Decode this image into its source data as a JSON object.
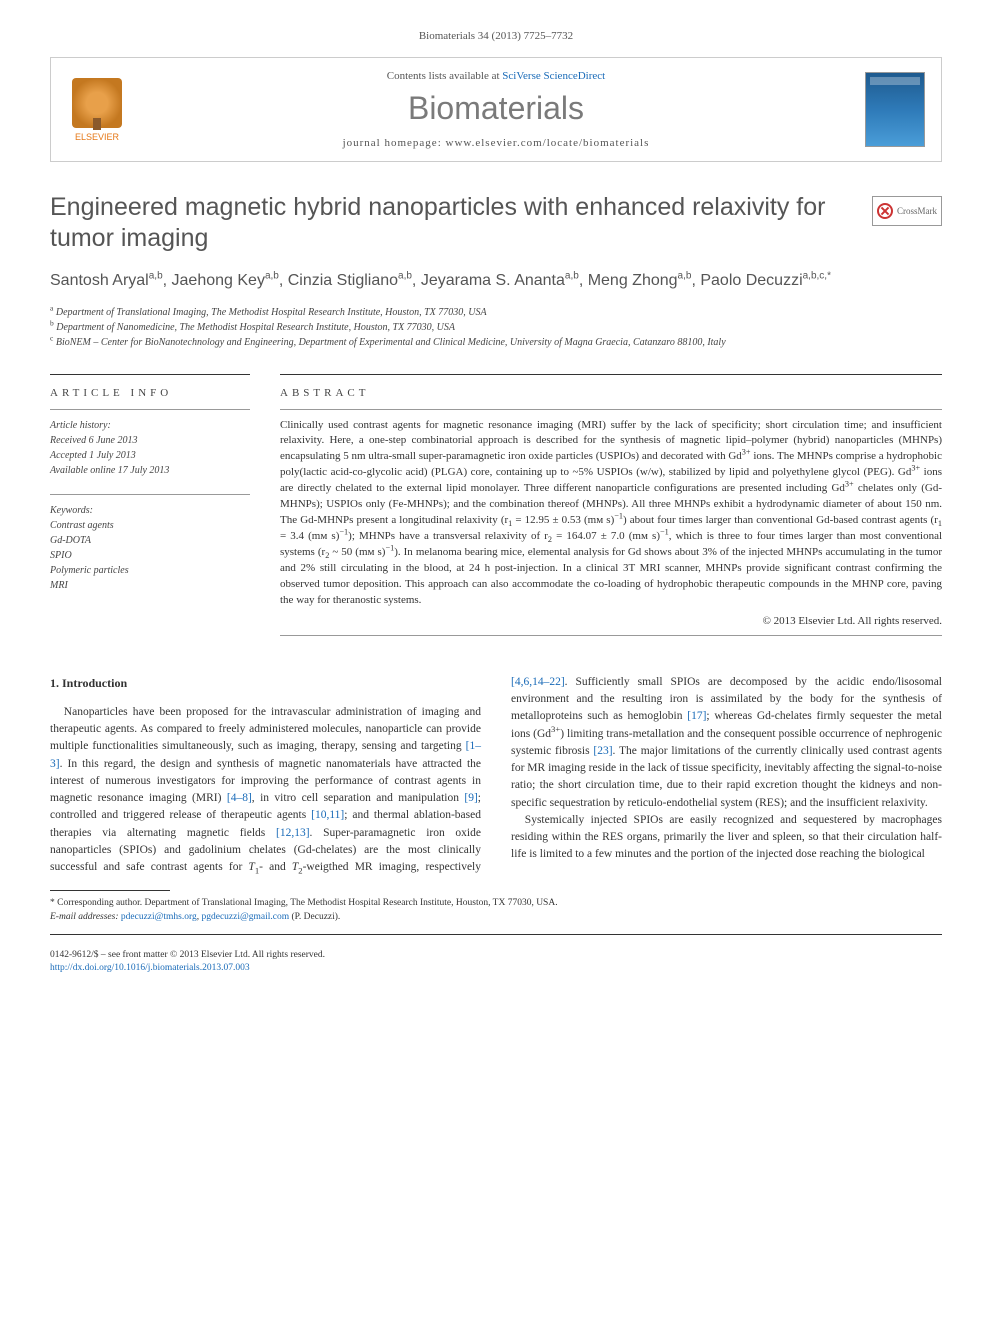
{
  "citation": "Biomaterials 34 (2013) 7725–7732",
  "header": {
    "contents_prefix": "Contents lists available at ",
    "contents_link": "SciVerse ScienceDirect",
    "journal_name": "Biomaterials",
    "homepage_prefix": "journal homepage: ",
    "homepage_url": "www.elsevier.com/locate/biomaterials",
    "elsevier_label": "ELSEVIER",
    "cover_label": "Biomaterials"
  },
  "crossmark_label": "CrossMark",
  "title": "Engineered magnetic hybrid nanoparticles with enhanced relaxivity for tumor imaging",
  "authors_html": "Santosh Aryal<sup>a,b</sup>, Jaehong Key<sup>a,b</sup>, Cinzia Stigliano<sup>a,b</sup>, Jeyarama S. Ananta<sup>a,b</sup>, Meng Zhong<sup>a,b</sup>, Paolo Decuzzi<sup>a,b,c,*</sup>",
  "affiliations": [
    {
      "sup": "a",
      "text": "Department of Translational Imaging, The Methodist Hospital Research Institute, Houston, TX 77030, USA"
    },
    {
      "sup": "b",
      "text": "Department of Nanomedicine, The Methodist Hospital Research Institute, Houston, TX 77030, USA"
    },
    {
      "sup": "c",
      "text": "BioNEM – Center for BioNanotechnology and Engineering, Department of Experimental and Clinical Medicine, University of Magna Graecia, Catanzaro 88100, Italy"
    }
  ],
  "article_info": {
    "head": "ARTICLE INFO",
    "history_label": "Article history:",
    "received": "Received 6 June 2013",
    "accepted": "Accepted 1 July 2013",
    "online": "Available online 17 July 2013",
    "keywords_label": "Keywords:",
    "keywords": [
      "Contrast agents",
      "Gd-DOTA",
      "SPIO",
      "Polymeric particles",
      "MRI"
    ]
  },
  "abstract": {
    "head": "ABSTRACT",
    "text_html": "Clinically used contrast agents for magnetic resonance imaging (MRI) suffer by the lack of specificity; short circulation time; and insufficient relaxivity. Here, a one-step combinatorial approach is described for the synthesis of magnetic lipid–polymer (hybrid) nanoparticles (MHNPs) encapsulating 5 nm ultra-small super-paramagnetic iron oxide particles (USPIOs) and decorated with Gd<sup>3+</sup> ions. The MHNPs comprise a hydrophobic poly(lactic acid-co-glycolic acid) (PLGA) core, containing up to ~5% USPIOs (w/w), stabilized by lipid and polyethylene glycol (PEG). Gd<sup>3+</sup> ions are directly chelated to the external lipid monolayer. Three different nanoparticle configurations are presented including Gd<sup>3+</sup> chelates only (Gd-MHNPs); USPIOs only (Fe-MHNPs); and the combination thereof (MHNPs). All three MHNPs exhibit a hydrodynamic diameter of about 150 nm. The Gd-MHNPs present a longitudinal relaxivity (r<sub>1</sub> = 12.95 ± 0.53 (mᴍ s)<sup>−1</sup>) about four times larger than conventional Gd-based contrast agents (r<sub>1</sub> = 3.4 (mᴍ s)<sup>−1</sup>); MHNPs have a transversal relaxivity of r<sub>2</sub> = 164.07 ± 7.0 (mᴍ s)<sup>−1</sup>, which is three to four times larger than most conventional systems (r<sub>2</sub> ~ 50 (mᴍ s)<sup>−1</sup>). In melanoma bearing mice, elemental analysis for Gd shows about 3% of the injected MHNPs accumulating in the tumor and 2% still circulating in the blood, at 24 h post-injection. In a clinical 3T MRI scanner, MHNPs provide significant contrast confirming the observed tumor deposition. This approach can also accommodate the co-loading of hydrophobic therapeutic compounds in the MHNP core, paving the way for theranostic systems.",
    "copyright": "© 2013 Elsevier Ltd. All rights reserved."
  },
  "intro": {
    "heading": "1. Introduction",
    "p1_html": "Nanoparticles have been proposed for the intravascular administration of imaging and therapeutic agents. As compared to freely administered molecules, nanoparticle can provide multiple functionalities simultaneously, such as imaging, therapy, sensing and targeting <a href='#'>[1–3]</a>. In this regard, the design and synthesis of magnetic nanomaterials have attracted the interest of numerous investigators for improving the performance of contrast agents in magnetic resonance imaging (MRI) <a href='#'>[4–8]</a>, in vitro cell separation and manipulation <a href='#'>[9]</a>; controlled and triggered release of therapeutic agents <a href='#'>[10,11]</a>; and thermal ablation-based therapies via alternating magnetic fields <a href='#'>[12,13]</a>. Super-paramagnetic iron oxide nanoparticles (SPIOs) and gadolinium chelates (Gd-chelates) are the most clinically successful and safe contrast agents for <i>T</i><sub>1</sub>- and <i>T</i><sub>2</sub>-weigthed MR imaging, respectively <a href='#'>[4,6,14–22]</a>. Sufficiently small SPIOs are decomposed by the acidic endo/lisosomal environment and the resulting iron is assimilated by the body for the synthesis of metalloproteins such as hemoglobin <a href='#'>[17]</a>; whereas Gd-chelates firmly sequester the metal ions (Gd<sup>3+</sup>) limiting trans-metallation and the consequent possible occurrence of nephrogenic systemic fibrosis <a href='#'>[23]</a>. The major limitations of the currently clinically used contrast agents for MR imaging reside in the lack of tissue specificity, inevitably affecting the signal-to-noise ratio; the short circulation time, due to their rapid excretion thought the kidneys and non-specific sequestration by reticulo-endothelial system (RES); and the insufficient relaxivity.",
    "p2_html": "Systemically injected SPIOs are easily recognized and sequestered by macrophages residing within the RES organs, primarily the liver and spleen, so that their circulation half-life is limited to a few minutes and the portion of the injected dose reaching the biological"
  },
  "footnotes": {
    "corr_html": "* Corresponding author. Department of Translational Imaging, The Methodist Hospital Research Institute, Houston, TX 77030, USA.",
    "email_label": "E-mail addresses: ",
    "email1": "pdecuzzi@tmhs.org",
    "email2": "pgdecuzzi@gmail.com",
    "email_suffix": " (P. Decuzzi)."
  },
  "footer": {
    "issn_line": "0142-9612/$ – see front matter © 2013 Elsevier Ltd. All rights reserved.",
    "doi_url": "http://dx.doi.org/10.1016/j.biomaterials.2013.07.003"
  },
  "colors": {
    "link": "#1a6bb8",
    "text": "#333333",
    "muted": "#555555",
    "orange": "#e67817",
    "rule": "#333333"
  }
}
